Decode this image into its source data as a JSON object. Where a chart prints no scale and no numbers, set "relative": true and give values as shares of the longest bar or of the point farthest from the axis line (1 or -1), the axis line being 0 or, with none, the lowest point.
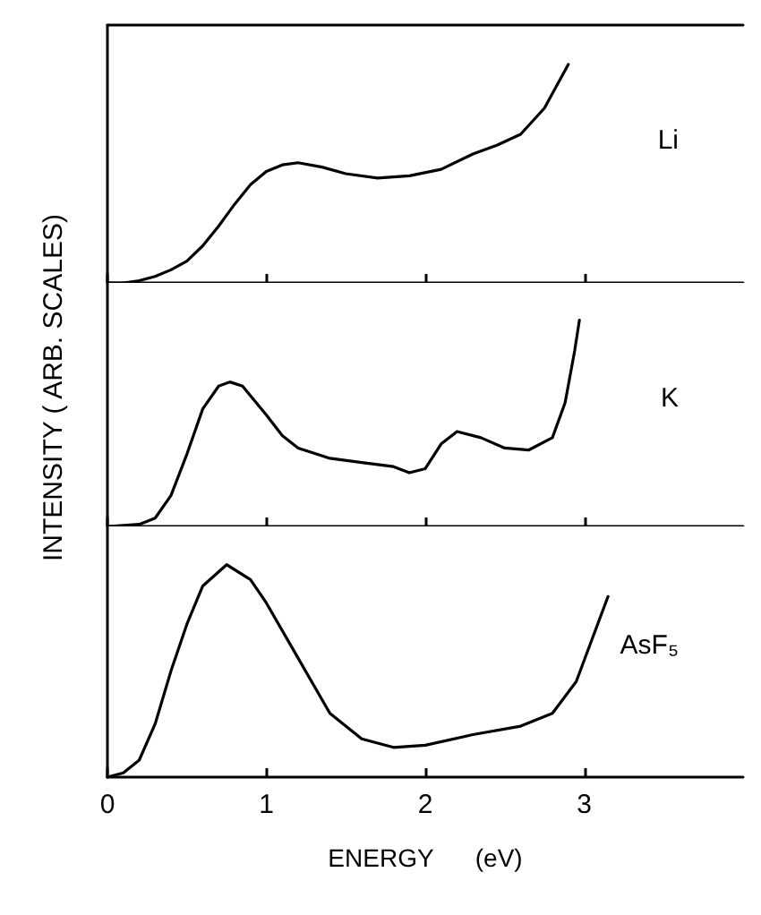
{
  "chart_data": [
    {
      "type": "line",
      "relative": true,
      "xlim": [
        0,
        4
      ],
      "xticks": [
        0,
        1,
        2,
        3
      ],
      "tick_labels": false,
      "grid": false,
      "legend": false,
      "series": [
        {
          "name": "Li",
          "color": "#000000",
          "x": [
            0,
            0.1,
            0.2,
            0.3,
            0.4,
            0.5,
            0.6,
            0.7,
            0.8,
            0.9,
            1.0,
            1.1,
            1.2,
            1.35,
            1.5,
            1.7,
            1.9,
            2.1,
            2.3,
            2.45,
            2.6,
            2.75,
            2.9
          ],
          "values": [
            0,
            0,
            0.01,
            0.03,
            0.06,
            0.1,
            0.17,
            0.26,
            0.36,
            0.45,
            0.51,
            0.54,
            0.55,
            0.53,
            0.5,
            0.48,
            0.49,
            0.52,
            0.59,
            0.63,
            0.68,
            0.8,
            1
          ]
        }
      ]
    },
    {
      "type": "line",
      "relative": true,
      "xlim": [
        0,
        4
      ],
      "xticks": [
        0,
        1,
        2,
        3
      ],
      "tick_labels": false,
      "grid": false,
      "legend": false,
      "ylabel": "INTENSITY ( ARB. SCALES)",
      "series": [
        {
          "name": "K",
          "color": "#000000",
          "x": [
            0,
            0.2,
            0.3,
            0.4,
            0.5,
            0.6,
            0.7,
            0.77,
            0.85,
            1.0,
            1.1,
            1.2,
            1.4,
            1.6,
            1.8,
            1.9,
            2.0,
            2.1,
            2.2,
            2.35,
            2.5,
            2.65,
            2.8,
            2.88,
            2.94,
            2.97
          ],
          "values": [
            0,
            0.01,
            0.04,
            0.15,
            0.35,
            0.57,
            0.68,
            0.7,
            0.68,
            0.54,
            0.44,
            0.38,
            0.33,
            0.31,
            0.29,
            0.26,
            0.28,
            0.4,
            0.46,
            0.43,
            0.38,
            0.37,
            0.43,
            0.6,
            0.85,
            1
          ]
        }
      ]
    },
    {
      "type": "line",
      "relative": true,
      "xlim": [
        0,
        4
      ],
      "xticks": [
        0,
        1,
        2,
        3
      ],
      "tick_labels": "x",
      "grid": false,
      "legend": false,
      "xlabel": "ENERGY      (eV)",
      "series": [
        {
          "name": "AsF₅",
          "color": "#000000",
          "x": [
            0,
            0.1,
            0.2,
            0.3,
            0.4,
            0.5,
            0.6,
            0.75,
            0.9,
            1.0,
            1.2,
            1.4,
            1.6,
            1.8,
            2.0,
            2.3,
            2.6,
            2.8,
            2.95,
            3.05,
            3.15
          ],
          "values": [
            0,
            0.02,
            0.08,
            0.25,
            0.5,
            0.72,
            0.9,
            1,
            0.93,
            0.82,
            0.56,
            0.3,
            0.18,
            0.14,
            0.15,
            0.2,
            0.24,
            0.3,
            0.45,
            0.65,
            0.85
          ]
        }
      ]
    }
  ]
}
